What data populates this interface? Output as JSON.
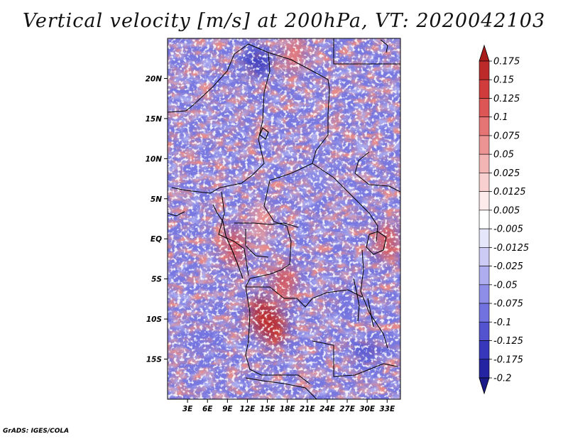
{
  "title": "Vertical velocity [m/s] at 200hPa, VT: 2020042103",
  "credit": "GrADS: IGES/COLA",
  "map": {
    "lon_range_deg": [
      0,
      35
    ],
    "lat_range_deg": [
      -20,
      25
    ],
    "lat_ticks": [
      "20N",
      "15N",
      "10N",
      "5N",
      "EQ",
      "5S",
      "10S",
      "15S"
    ],
    "lat_tick_values": [
      20,
      15,
      10,
      5,
      0,
      -5,
      -10,
      -15
    ],
    "lon_ticks": [
      "3E",
      "6E",
      "9E",
      "12E",
      "15E",
      "18E",
      "21E",
      "24E",
      "27E",
      "30E",
      "33E"
    ],
    "lon_tick_values": [
      3,
      6,
      9,
      12,
      15,
      18,
      21,
      24,
      27,
      30,
      33
    ],
    "hotspots": [
      {
        "lon": 14,
        "lat": -9.5,
        "value": 0.17
      },
      {
        "lon": 16,
        "lat": -11,
        "value": 0.15
      },
      {
        "lon": 17.5,
        "lat": -5.5,
        "value": 0.12
      },
      {
        "lon": 10,
        "lat": -1,
        "value": 0.1
      },
      {
        "lon": 33,
        "lat": -0.5,
        "value": 0.12
      },
      {
        "lon": 19,
        "lat": 23,
        "value": 0.08
      },
      {
        "lon": 14,
        "lat": 2,
        "value": 0.06
      }
    ],
    "coldspots": [
      {
        "lon": 13.5,
        "lat": 22,
        "value": -0.15
      },
      {
        "lon": 30,
        "lat": -14,
        "value": -0.12
      },
      {
        "lon": 27,
        "lat": -8,
        "value": -0.08
      },
      {
        "lon": 5,
        "lat": -13,
        "value": -0.09
      },
      {
        "lon": 22,
        "lat": 8,
        "value": -0.07
      }
    ]
  },
  "colorbar": {
    "labels": [
      "0.175",
      "0.15",
      "0.125",
      "0.1",
      "0.075",
      "0.05",
      "0.025",
      "0.0125",
      "0.005",
      "-0.005",
      "-0.0125",
      "-0.025",
      "-0.05",
      "-0.075",
      "-0.1",
      "-0.125",
      "-0.175",
      "-0.2"
    ],
    "colors": [
      "#a81c1c",
      "#bd2a2a",
      "#d03c3c",
      "#dc5656",
      "#e57474",
      "#ec9494",
      "#f3b4b4",
      "#f9d0d0",
      "#fdeaea",
      "#ffffff",
      "#e6e6fb",
      "#cbcbf6",
      "#adadef",
      "#8e8ee8",
      "#7171df",
      "#5353d0",
      "#3737bb",
      "#2424a2",
      "#1a1a88"
    ]
  }
}
